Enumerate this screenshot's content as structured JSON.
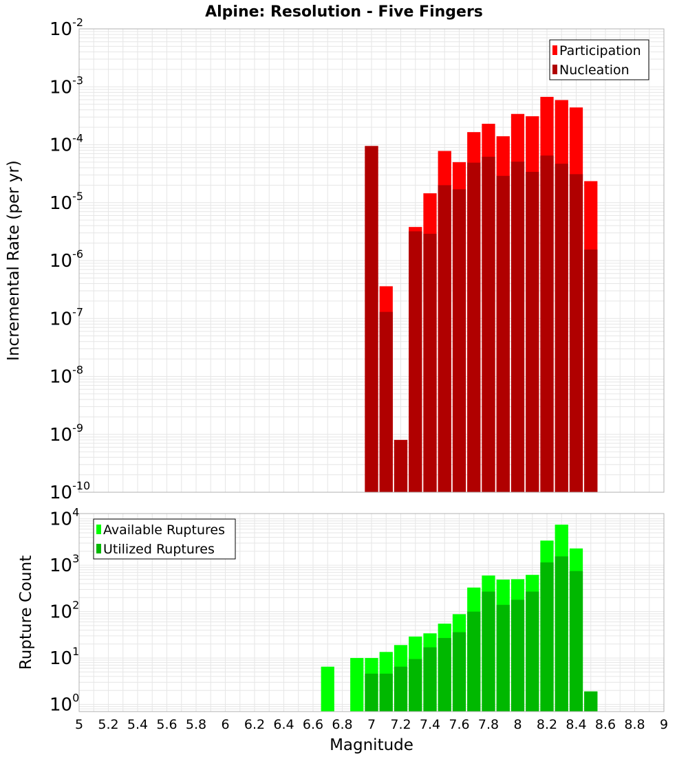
{
  "title": "Alpine: Resolution - Five Fingers",
  "colors": {
    "participation": "#ff0000",
    "nucleation": "#b00000",
    "available": "#00ff00",
    "utilized": "#00b800",
    "grid": "#e6e6e6",
    "frame": "#b0b0b0"
  },
  "chart_data": [
    {
      "type": "bar",
      "ylabel": "Incremental Rate (per yr)",
      "yscale": "log",
      "ylim": [
        1e-10,
        0.01
      ],
      "xlim": [
        5,
        9
      ],
      "grid": true,
      "legend_position": "top-right",
      "y_ticks": [
        {
          "base": "10",
          "exp": "-10"
        },
        {
          "base": "10",
          "exp": "-9"
        },
        {
          "base": "10",
          "exp": "-8"
        },
        {
          "base": "10",
          "exp": "-7"
        },
        {
          "base": "10",
          "exp": "-6"
        },
        {
          "base": "10",
          "exp": "-5"
        },
        {
          "base": "10",
          "exp": "-4"
        },
        {
          "base": "10",
          "exp": "-3"
        },
        {
          "base": "10",
          "exp": "-2"
        }
      ],
      "x": [
        7.0,
        7.1,
        7.2,
        7.3,
        7.4,
        7.5,
        7.6,
        7.7,
        7.8,
        7.9,
        8.0,
        8.1,
        8.2,
        8.3,
        8.4,
        8.5
      ],
      "series": [
        {
          "name": "Participation",
          "values": [
            9.5e-05,
            3.6e-07,
            8e-10,
            3.8e-06,
            1.45e-05,
            7.8e-05,
            5e-05,
            0.000165,
            0.00023,
            0.00014,
            0.00034,
            0.00031,
            0.00067,
            0.00059,
            0.00044,
            2.35e-05
          ]
        },
        {
          "name": "Nucleation",
          "values": [
            9.5e-05,
            1.3e-07,
            8e-10,
            3.2e-06,
            2.9e-06,
            2e-05,
            1.7e-05,
            4.9e-05,
            6.2e-05,
            2.9e-05,
            5.1e-05,
            3.4e-05,
            6.5e-05,
            4.7e-05,
            3.1e-05,
            1.55e-06
          ]
        }
      ]
    },
    {
      "type": "bar",
      "ylabel": "Rupture Count",
      "xlabel": "Magnitude",
      "yscale": "log",
      "ylim": [
        0.7,
        13000
      ],
      "xlim": [
        5,
        9
      ],
      "grid": true,
      "legend_position": "top-left",
      "y_ticks": [
        {
          "base": "10",
          "exp": "0"
        },
        {
          "base": "10",
          "exp": "1"
        },
        {
          "base": "10",
          "exp": "2"
        },
        {
          "base": "10",
          "exp": "3"
        },
        {
          "base": "10",
          "exp": "4"
        }
      ],
      "x_tick_labels": [
        "5",
        "5.2",
        "5.4",
        "5.6",
        "5.8",
        "6",
        "6.2",
        "6.4",
        "6.6",
        "6.8",
        "7",
        "7.2",
        "7.4",
        "7.6",
        "7.8",
        "8",
        "8.2",
        "8.4",
        "8.6",
        "8.8",
        "9"
      ],
      "x": [
        6.7,
        6.9,
        7.0,
        7.1,
        7.2,
        7.3,
        7.4,
        7.5,
        7.6,
        7.7,
        7.8,
        7.9,
        8.0,
        8.1,
        8.2,
        8.3,
        8.4,
        8.5
      ],
      "series": [
        {
          "name": "Available Ruptures",
          "values": [
            6.5,
            10,
            10,
            13.5,
            19,
            29,
            34,
            55,
            88,
            330,
            600,
            490,
            500,
            620,
            3400,
            7500,
            2300,
            1.9
          ]
        },
        {
          "name": "Utilized Ruptures",
          "values": [
            0,
            0,
            4.6,
            4.6,
            6.5,
            9.5,
            17,
            27,
            36,
            100,
            270,
            140,
            180,
            270,
            1150,
            1550,
            750,
            1.9
          ]
        }
      ]
    }
  ]
}
